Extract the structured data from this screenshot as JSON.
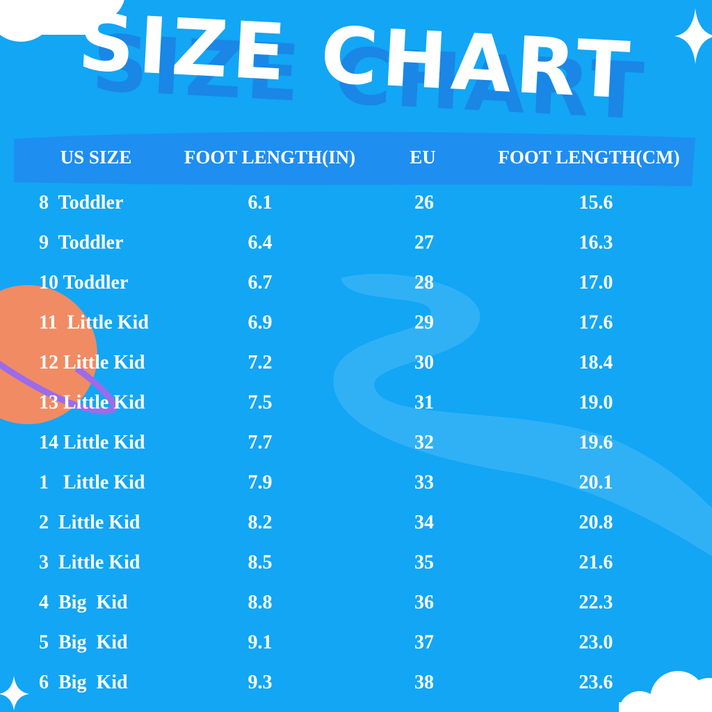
{
  "title": "SIZE CHART",
  "table": {
    "headers": [
      "US SIZE",
      "FOOT LENGTH(IN)",
      "EU",
      "FOOT LENGTH(CM)"
    ],
    "rows": [
      [
        "8  Toddler",
        "6.1",
        "26",
        "15.6"
      ],
      [
        "9  Toddler",
        "6.4",
        "27",
        "16.3"
      ],
      [
        "10 Toddler",
        "6.7",
        "28",
        "17.0"
      ],
      [
        "11  Little Kid",
        "6.9",
        "29",
        "17.6"
      ],
      [
        "12 Little Kid",
        "7.2",
        "30",
        "18.4"
      ],
      [
        "13 Little Kid",
        "7.5",
        "31",
        "19.0"
      ],
      [
        "14 Little Kid",
        "7.7",
        "32",
        "19.6"
      ],
      [
        "1   Little Kid",
        "7.9",
        "33",
        "20.1"
      ],
      [
        "2  Little Kid",
        "8.2",
        "34",
        "20.8"
      ],
      [
        "3  Little Kid",
        "8.5",
        "35",
        "21.6"
      ],
      [
        "4  Big  Kid",
        "8.8",
        "36",
        "22.3"
      ],
      [
        "5  Big  Kid",
        "9.1",
        "37",
        "23.0"
      ],
      [
        "6  Big  Kid",
        "9.3",
        "38",
        "23.6"
      ]
    ]
  }
}
